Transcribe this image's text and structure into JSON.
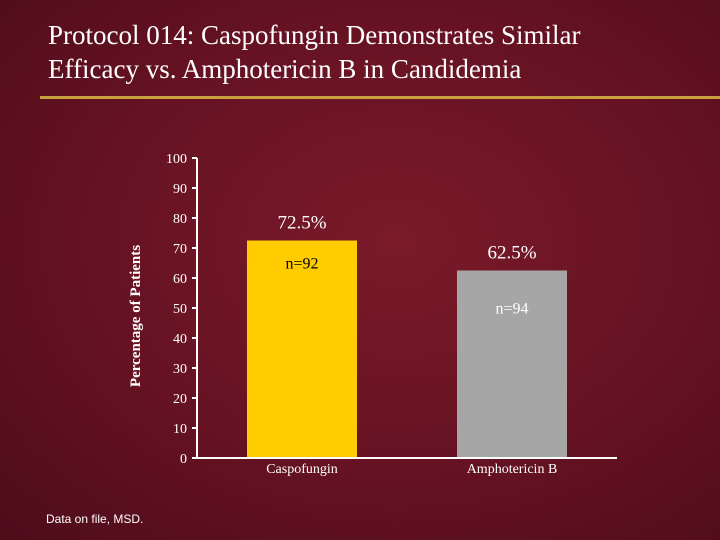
{
  "slide": {
    "title_line1": "Protocol 014: Caspofungin Demonstrates Similar",
    "title_line2": "Efficacy vs. Amphotericin B in Candidemia",
    "footnote": "Data on file, MSD.",
    "accent_color": "#c8a040"
  },
  "chart_data": {
    "type": "bar",
    "title": "",
    "xlabel": "",
    "ylabel": "Percentage of Patients",
    "ylim": [
      0,
      100
    ],
    "yticks": [
      "0",
      "10",
      "20",
      "30",
      "40",
      "50",
      "60",
      "70",
      "80",
      "90",
      "100"
    ],
    "grid": false,
    "categories": [
      "Caspofungin",
      "Amphotericin B"
    ],
    "values": [
      72.5,
      62.5
    ],
    "value_labels": [
      "72.5%",
      "62.5%"
    ],
    "n_labels": [
      "n=92",
      "n=94"
    ],
    "colors": [
      "#ffcc00",
      "#a6a6a6"
    ]
  }
}
